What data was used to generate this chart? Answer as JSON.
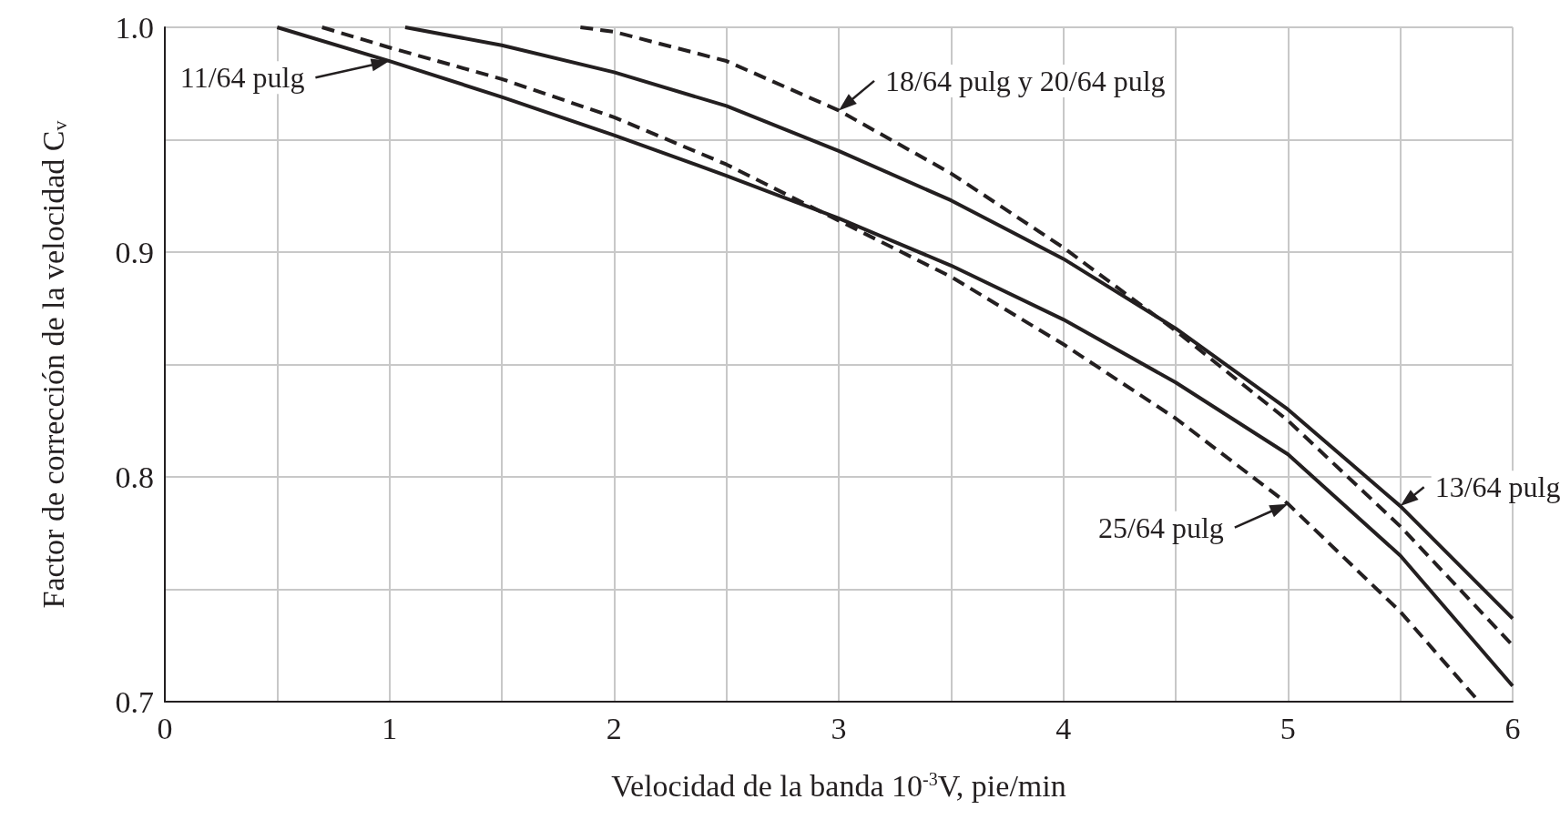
{
  "chart_data": {
    "type": "line",
    "xlabel": "Velocidad de la banda 10$^{-3}$V, pie/min",
    "ylabel": "Factor de corrección de la velocidad C$_{v}$",
    "xlim": [
      0,
      6
    ],
    "xticks": [
      0,
      {
        "value": 0.5,
        "label": null
      },
      1,
      {
        "value": 1.5,
        "label": null
      },
      2,
      {
        "value": 2.5,
        "label": null
      },
      3,
      {
        "value": 3.5,
        "label": null
      },
      4,
      {
        "value": 4.5,
        "label": null
      },
      5,
      {
        "value": 5.5,
        "label": null
      },
      6
    ],
    "ylim": [
      0.7,
      1.0
    ],
    "yticks": [
      0.7,
      {
        "value": 0.75,
        "label": null
      },
      0.8,
      {
        "value": 0.85,
        "label": null
      },
      0.9,
      {
        "value": 0.95,
        "label": null
      },
      {
        "value": 1.0,
        "label": "1.0"
      }
    ],
    "grid": true,
    "marker": "none",
    "series": [
      {
        "color": "#231f20",
        "line_style": "solid",
        "x": [
          0.5,
          1,
          1.5,
          2,
          2.5,
          3,
          3.5,
          4,
          4.5,
          5,
          5.5,
          6
        ],
        "values": [
          1.0,
          0.985,
          0.969,
          0.952,
          0.934,
          0.915,
          0.894,
          0.87,
          0.842,
          0.81,
          0.765,
          0.707
        ]
      },
      {
        "color": "#231f20",
        "line_style": "solid",
        "x": [
          1.07,
          1.5,
          2,
          2.5,
          3,
          3.5,
          4,
          4.5,
          5,
          5.5,
          6
        ],
        "values": [
          1.0,
          0.992,
          0.98,
          0.965,
          0.945,
          0.923,
          0.897,
          0.866,
          0.83,
          0.787,
          0.737
        ]
      },
      {
        "color": "#231f20",
        "line_style": "dashed",
        "x": [
          1.85,
          2,
          2.5,
          3,
          3.5,
          4,
          4.5,
          5,
          5.5,
          6
        ],
        "values": [
          1.0,
          0.998,
          0.985,
          0.963,
          0.935,
          0.902,
          0.865,
          0.825,
          0.778,
          0.725
        ]
      },
      {
        "color": "#231f20",
        "line_style": "dashed",
        "x": [
          0.7,
          1,
          1.5,
          2,
          2.5,
          3,
          3.5,
          4,
          4.5,
          5,
          5.5,
          5.85
        ],
        "values": [
          1.0,
          0.991,
          0.977,
          0.96,
          0.939,
          0.914,
          0.889,
          0.859,
          0.826,
          0.788,
          0.74,
          0.7
        ]
      }
    ],
    "annotations": [
      {
        "text": "11/64 pulg",
        "x": 1,
        "y": 0.985
      },
      {
        "text": "18/64 pulg y 20/64 pulg",
        "x": 3,
        "y": 0.963
      },
      {
        "text": "13/64 pulg",
        "x": 5.5,
        "y": 0.787
      },
      {
        "text": "25/64 pulg",
        "x": 5,
        "y": 0.788
      }
    ]
  }
}
